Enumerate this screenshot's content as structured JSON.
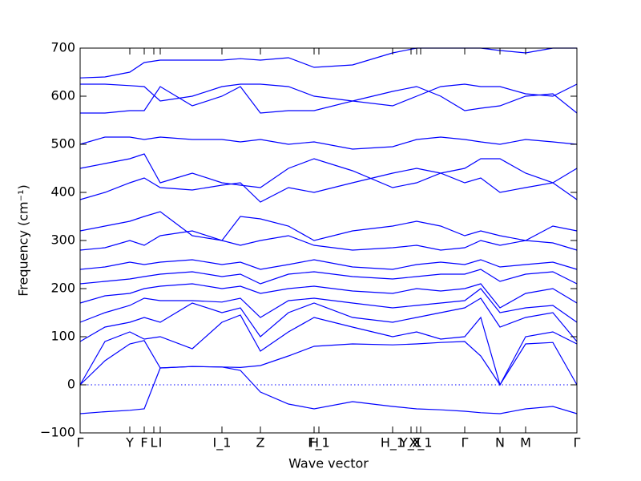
{
  "chart_data": {
    "type": "line",
    "xlabel": "Wave vector",
    "ylabel": "Frequency (cm⁻¹)",
    "color": "#0000ff",
    "x": [
      0,
      31,
      62,
      80,
      100,
      140,
      177,
      200,
      225,
      260,
      292,
      340,
      390,
      420,
      450,
      480,
      500,
      524,
      556,
      590,
      620
    ],
    "xlim": [
      0,
      620
    ],
    "xticks": [
      {
        "value": 0,
        "label": "Γ"
      },
      {
        "value": 62,
        "label": "Y"
      },
      {
        "value": 80,
        "label": "F"
      },
      {
        "value": 92,
        "label": "L"
      },
      {
        "value": 100,
        "label": "I"
      },
      {
        "value": 177,
        "label": "I_1"
      },
      {
        "value": 225,
        "label": "Z"
      },
      {
        "value": 292,
        "label": "H"
      },
      {
        "value": 298,
        "label": "F_1"
      },
      {
        "value": 390,
        "label": "H_1"
      },
      {
        "value": 413,
        "label": "Y_1"
      },
      {
        "value": 420,
        "label": "X"
      },
      {
        "value": 425,
        "label": "X_1"
      },
      {
        "value": 480,
        "label": "Γ"
      },
      {
        "value": 524,
        "label": "N"
      },
      {
        "value": 556,
        "label": "M"
      },
      {
        "value": 620,
        "label": "Γ"
      }
    ],
    "ylim": [
      -100,
      700
    ],
    "yticks": [
      {
        "value": -100,
        "label": "−100"
      },
      0,
      100,
      200,
      300,
      400,
      500,
      600,
      700
    ],
    "series": [
      {
        "values": [
          -60,
          -56,
          -53,
          -50,
          35,
          38,
          37,
          30,
          -15,
          -40,
          -50,
          -35,
          -45,
          -50,
          -52,
          -55,
          -58,
          -60,
          -50,
          -45,
          -60
        ]
      },
      {
        "values": [
          0,
          50,
          85,
          92,
          35,
          38,
          37,
          36,
          40,
          60,
          80,
          85,
          83,
          85,
          88,
          90,
          60,
          0,
          85,
          88,
          0
        ]
      },
      {
        "values": [
          0,
          90,
          110,
          95,
          100,
          75,
          130,
          145,
          70,
          110,
          140,
          120,
          100,
          110,
          95,
          100,
          140,
          0,
          100,
          110,
          85
        ]
      },
      {
        "values": [
          90,
          120,
          130,
          140,
          130,
          170,
          150,
          160,
          100,
          150,
          170,
          140,
          130,
          140,
          150,
          160,
          180,
          120,
          140,
          150,
          90
        ]
      },
      {
        "values": [
          130,
          150,
          165,
          180,
          175,
          175,
          172,
          180,
          140,
          175,
          180,
          170,
          160,
          165,
          170,
          175,
          200,
          150,
          160,
          165,
          130
        ]
      },
      {
        "values": [
          170,
          185,
          190,
          200,
          205,
          210,
          200,
          205,
          190,
          200,
          205,
          195,
          190,
          200,
          195,
          200,
          210,
          160,
          190,
          200,
          170
        ]
      },
      {
        "values": [
          210,
          215,
          220,
          225,
          230,
          235,
          225,
          230,
          210,
          230,
          235,
          225,
          220,
          225,
          230,
          230,
          240,
          215,
          230,
          235,
          210
        ]
      },
      {
        "values": [
          240,
          245,
          255,
          250,
          255,
          260,
          250,
          255,
          240,
          250,
          260,
          245,
          240,
          250,
          255,
          250,
          260,
          245,
          250,
          255,
          240
        ]
      },
      {
        "values": [
          280,
          285,
          300,
          290,
          310,
          320,
          300,
          290,
          300,
          310,
          290,
          280,
          285,
          290,
          280,
          285,
          300,
          290,
          300,
          295,
          280
        ]
      },
      {
        "values": [
          320,
          330,
          340,
          350,
          360,
          310,
          300,
          350,
          345,
          330,
          300,
          320,
          330,
          340,
          330,
          310,
          320,
          310,
          300,
          330,
          320
        ]
      },
      {
        "values": [
          385,
          400,
          420,
          430,
          410,
          405,
          415,
          420,
          380,
          410,
          400,
          420,
          440,
          450,
          440,
          420,
          430,
          400,
          410,
          420,
          385
        ]
      },
      {
        "values": [
          450,
          460,
          470,
          480,
          420,
          440,
          420,
          415,
          410,
          450,
          470,
          445,
          410,
          420,
          440,
          450,
          470,
          470,
          440,
          420,
          450
        ]
      },
      {
        "values": [
          500,
          515,
          515,
          510,
          515,
          510,
          510,
          505,
          510,
          500,
          505,
          490,
          495,
          510,
          515,
          510,
          505,
          500,
          510,
          505,
          500
        ]
      },
      {
        "values": [
          565,
          565,
          570,
          570,
          620,
          580,
          600,
          620,
          565,
          570,
          570,
          590,
          610,
          620,
          600,
          570,
          575,
          580,
          600,
          605,
          565
        ]
      },
      {
        "values": [
          625,
          625,
          622,
          620,
          590,
          600,
          620,
          625,
          625,
          620,
          600,
          590,
          580,
          600,
          620,
          625,
          620,
          620,
          605,
          600,
          625
        ]
      },
      {
        "values": [
          638,
          640,
          650,
          670,
          675,
          675,
          675,
          678,
          675,
          680,
          660,
          665,
          690,
          700,
          700,
          700,
          700,
          695,
          690,
          700,
          700
        ]
      }
    ]
  }
}
